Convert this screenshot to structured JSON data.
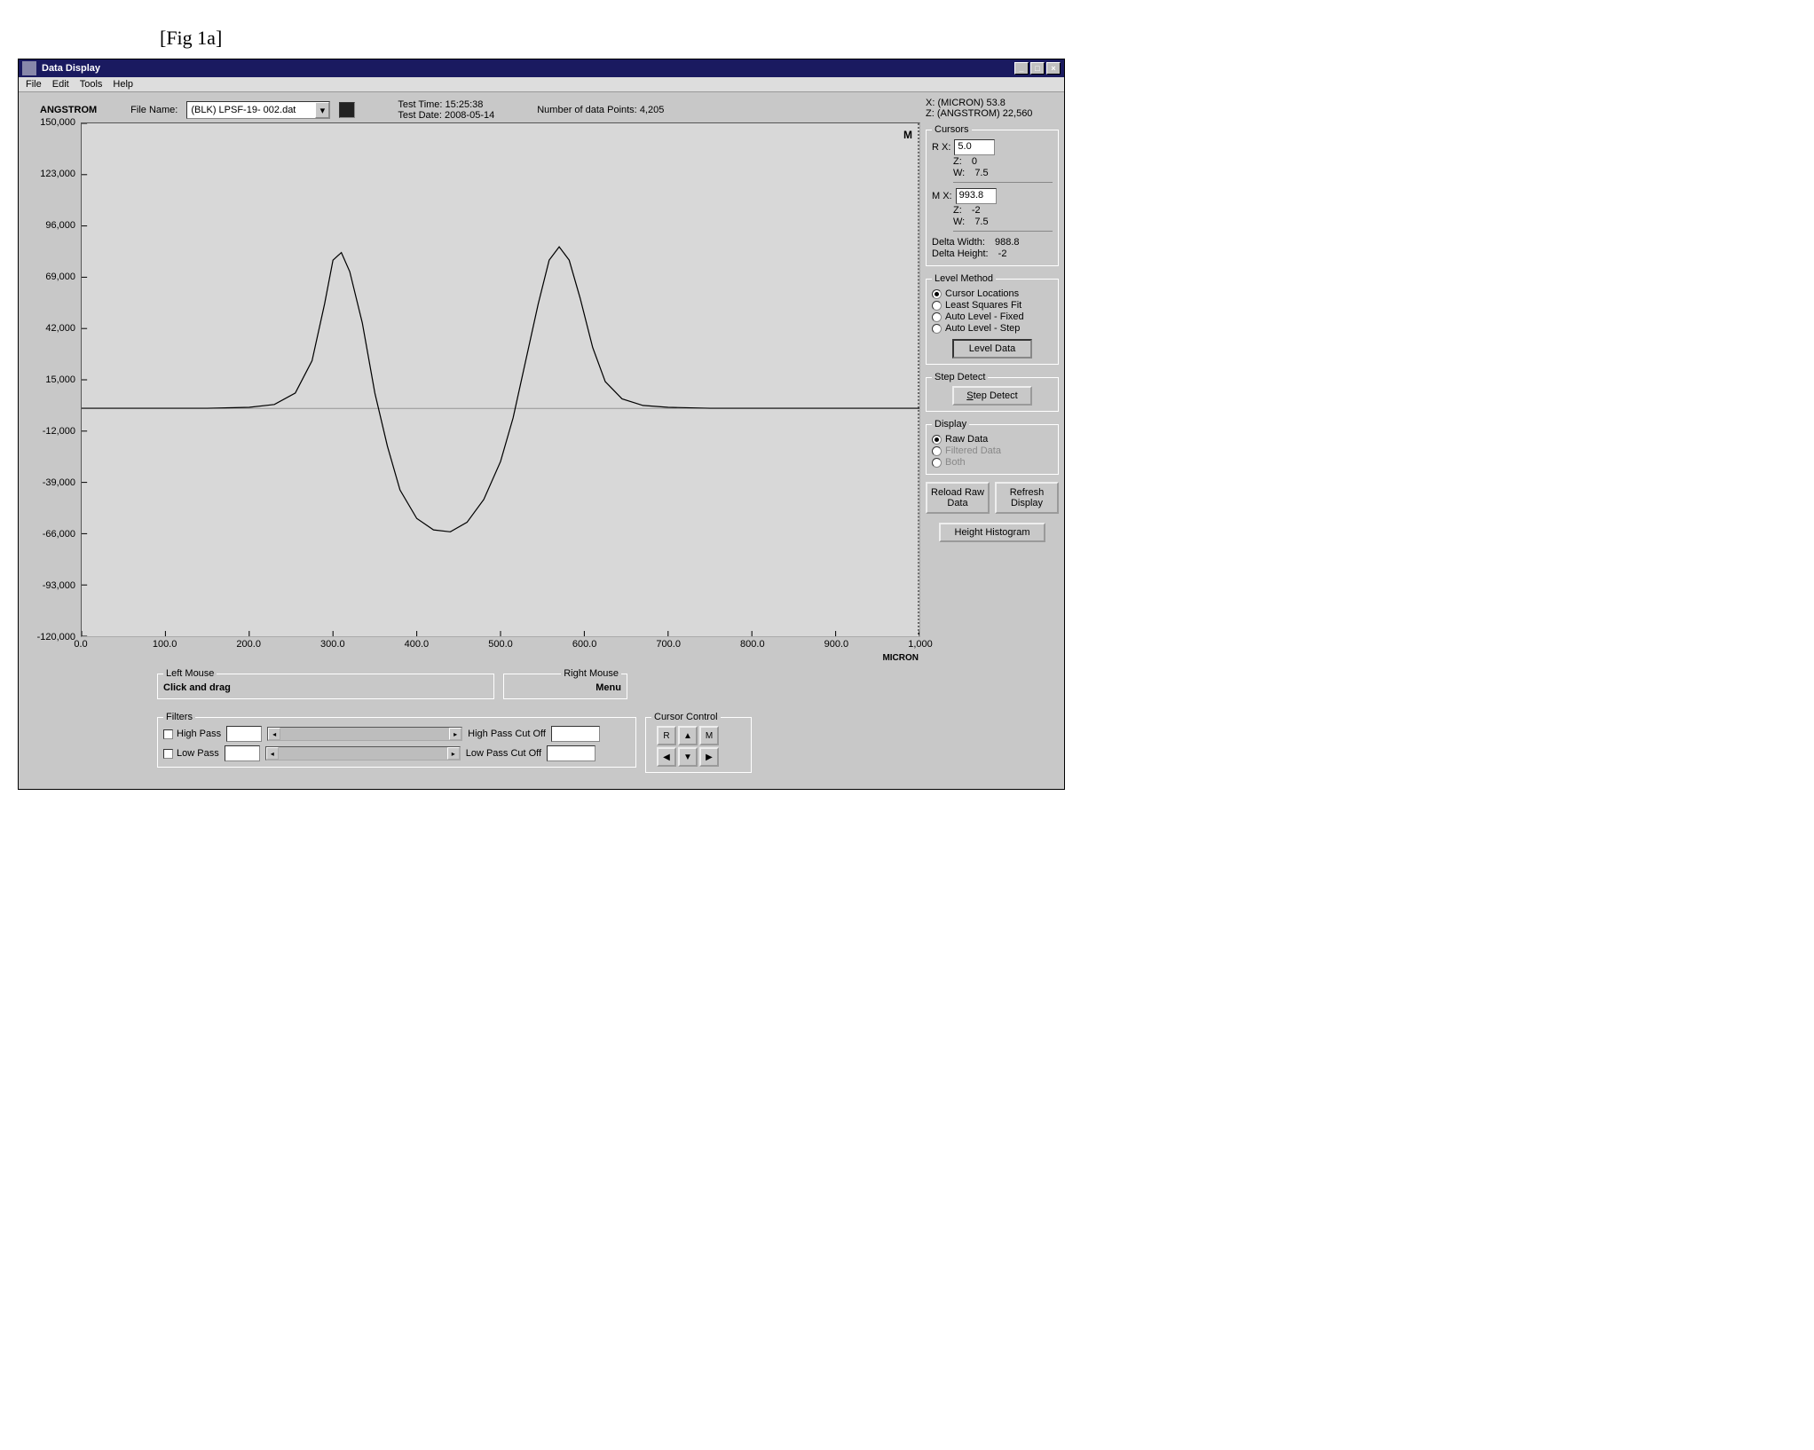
{
  "fig_label": "[Fig 1a]",
  "window": {
    "title": "Data Display"
  },
  "menu": {
    "file": "File",
    "edit": "Edit",
    "tools": "Tools",
    "help": "Help"
  },
  "header": {
    "angstrom": "ANGSTROM",
    "file_name_label": "File Name:",
    "file_name": "(BLK) LPSF-19- 002.dat",
    "test_time_label": "Test Time:",
    "test_time": "15:25:38",
    "test_date_label": "Test Date:",
    "test_date": "2008-05-14",
    "points_label": "Number of data Points:",
    "points": "4,205"
  },
  "readout": {
    "x_label": "X: (MICRON)",
    "x_value": "53.8",
    "z_label": "Z: (ANGSTROM)",
    "z_value": "22,560"
  },
  "chart": {
    "type": "line",
    "y_unit": "ANGSTROM",
    "x_unit": "MICRON",
    "xlim": [
      0,
      1000
    ],
    "ylim": [
      -120000,
      150000
    ],
    "x_ticks": [
      "0.0",
      "100.0",
      "200.0",
      "300.0",
      "400.0",
      "500.0",
      "600.0",
      "700.0",
      "800.0",
      "900.0",
      "1,000"
    ],
    "y_ticks": [
      "150,000",
      "123,000",
      "96,000",
      "69,000",
      "42,000",
      "15,000",
      "-12,000",
      "-39,000",
      "-66,000",
      "-93,000",
      "-120,000"
    ],
    "background_color": "#d8d8d8",
    "curve_color": "#000000",
    "baseline_y": 0,
    "cursor_m_label": "M",
    "series": [
      {
        "x": 0,
        "y": 0
      },
      {
        "x": 50,
        "y": 0
      },
      {
        "x": 100,
        "y": 0
      },
      {
        "x": 150,
        "y": 0
      },
      {
        "x": 200,
        "y": 500
      },
      {
        "x": 230,
        "y": 2000
      },
      {
        "x": 255,
        "y": 8000
      },
      {
        "x": 275,
        "y": 25000
      },
      {
        "x": 290,
        "y": 55000
      },
      {
        "x": 300,
        "y": 78000
      },
      {
        "x": 310,
        "y": 82000
      },
      {
        "x": 320,
        "y": 72000
      },
      {
        "x": 335,
        "y": 45000
      },
      {
        "x": 350,
        "y": 8000
      },
      {
        "x": 365,
        "y": -20000
      },
      {
        "x": 380,
        "y": -43000
      },
      {
        "x": 400,
        "y": -58000
      },
      {
        "x": 420,
        "y": -64000
      },
      {
        "x": 440,
        "y": -65000
      },
      {
        "x": 460,
        "y": -60000
      },
      {
        "x": 480,
        "y": -48000
      },
      {
        "x": 500,
        "y": -28000
      },
      {
        "x": 515,
        "y": -5000
      },
      {
        "x": 530,
        "y": 25000
      },
      {
        "x": 545,
        "y": 55000
      },
      {
        "x": 558,
        "y": 78000
      },
      {
        "x": 570,
        "y": 85000
      },
      {
        "x": 582,
        "y": 78000
      },
      {
        "x": 595,
        "y": 58000
      },
      {
        "x": 610,
        "y": 32000
      },
      {
        "x": 625,
        "y": 14000
      },
      {
        "x": 645,
        "y": 5000
      },
      {
        "x": 670,
        "y": 1500
      },
      {
        "x": 700,
        "y": 500
      },
      {
        "x": 750,
        "y": 0
      },
      {
        "x": 800,
        "y": 0
      },
      {
        "x": 850,
        "y": 0
      },
      {
        "x": 900,
        "y": 0
      },
      {
        "x": 950,
        "y": 0
      },
      {
        "x": 1000,
        "y": 0
      }
    ]
  },
  "cursors": {
    "legend": "Cursors",
    "r_label": "R   X:",
    "r_x": "5.0",
    "r_z_label": "Z:",
    "r_z": "0",
    "r_w_label": "W:",
    "r_w": "7.5",
    "m_label": "M   X:",
    "m_x": "993.8",
    "m_z_label": "Z:",
    "m_z": "-2",
    "m_w_label": "W:",
    "m_w": "7.5",
    "delta_w_label": "Delta Width:",
    "delta_w": "988.8",
    "delta_h_label": "Delta Height:",
    "delta_h": "-2"
  },
  "level": {
    "legend": "Level Method",
    "opt1": "Cursor Locations",
    "opt2": "Least Squares Fit",
    "opt3": "Auto Level - Fixed",
    "opt4": "Auto Level - Step",
    "button": "Level Data"
  },
  "step": {
    "legend": "Step Detect",
    "button": "Step Detect"
  },
  "display": {
    "legend": "Display",
    "opt1": "Raw Data",
    "opt2": "Filtered Data",
    "opt3": "Both"
  },
  "mouse": {
    "left_legend": "Left Mouse",
    "left_text": "Click and drag",
    "right_legend": "Right Mouse",
    "right_text": "Menu"
  },
  "filters": {
    "legend": "Filters",
    "highpass": "High Pass",
    "hp_cut_label": "High Pass Cut Off",
    "lowpass": "Low Pass",
    "lp_cut_label": "Low Pass Cut Off"
  },
  "cursor_control": {
    "legend": "Cursor Control",
    "r": "R",
    "m": "M"
  },
  "buttons": {
    "reload": "Reload Raw Data",
    "refresh": "Refresh Display",
    "histogram": "Height Histogram"
  }
}
